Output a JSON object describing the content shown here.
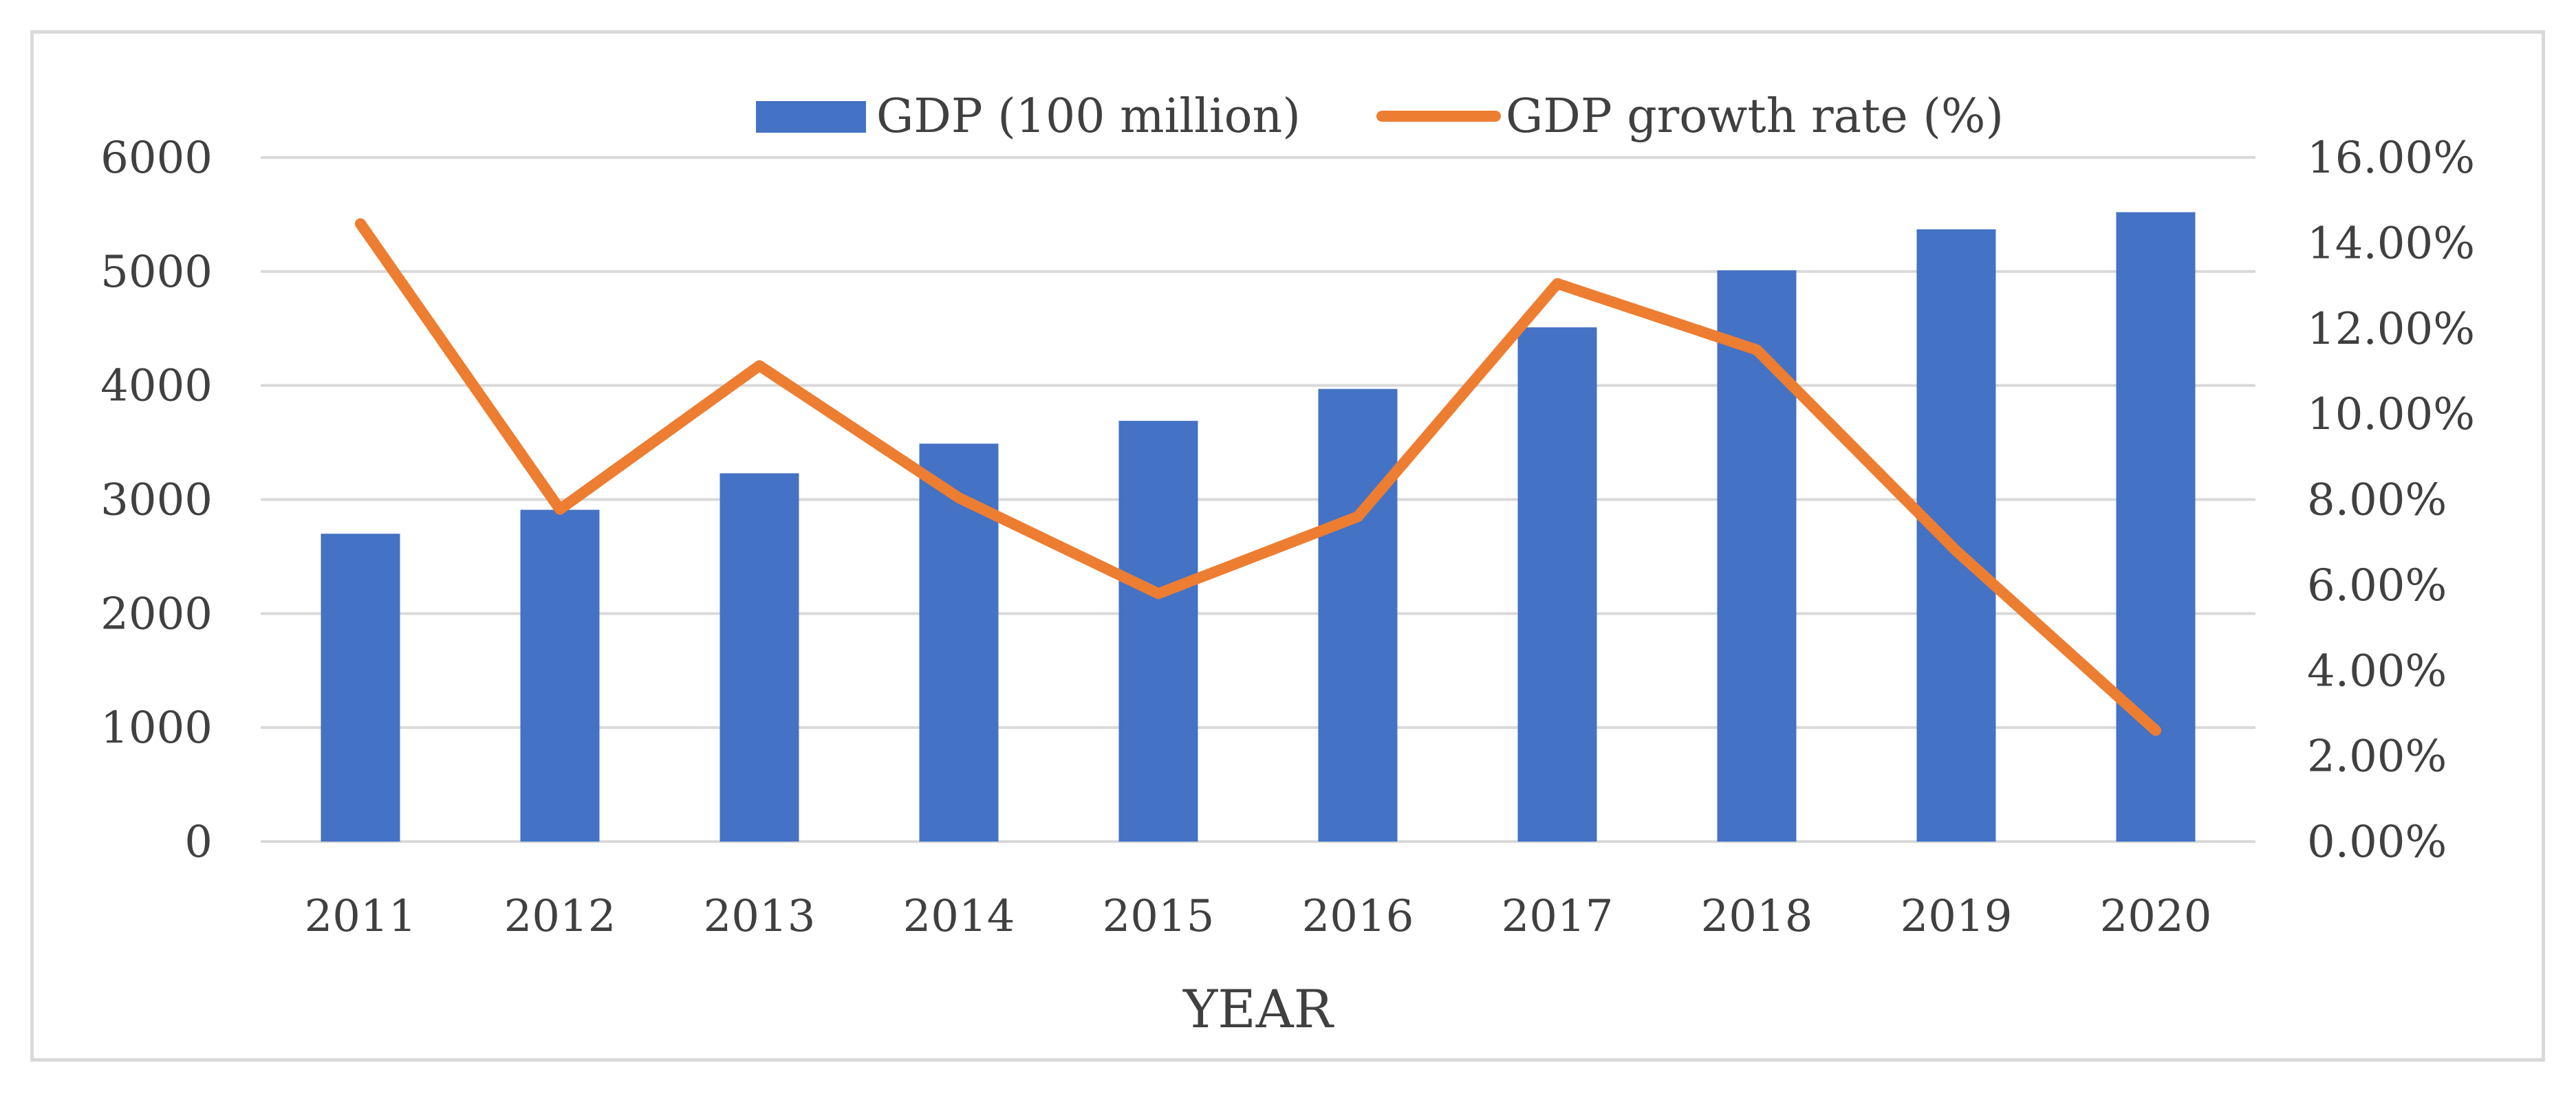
{
  "chart_data": {
    "type": "bar",
    "categories": [
      "2011",
      "2012",
      "2013",
      "2014",
      "2015",
      "2016",
      "2017",
      "2018",
      "2019",
      "2020"
    ],
    "series": [
      {
        "name": "GDP (100 million)",
        "type": "bar",
        "axis": "left",
        "color": "#4472c4",
        "values": [
          2700,
          2910,
          3230,
          3490,
          3690,
          3970,
          4510,
          5010,
          5370,
          5520
        ]
      },
      {
        "name": "GDP growth rate (%)",
        "type": "line",
        "axis": "right",
        "color": "#ed7d31",
        "values": [
          0.1445,
          0.0777,
          0.1113,
          0.0804,
          0.058,
          0.076,
          0.1305,
          0.115,
          0.068,
          0.026
        ]
      }
    ],
    "xlabel": "YEAR",
    "ylabel": "",
    "ylim": [
      0,
      6000
    ],
    "y_ticks": [
      "0",
      "1000",
      "2000",
      "3000",
      "4000",
      "5000",
      "6000"
    ],
    "y2lim": [
      0,
      0.16
    ],
    "y2_ticks": [
      "0.00%",
      "2.00%",
      "4.00%",
      "6.00%",
      "8.00%",
      "10.00%",
      "12.00%",
      "14.00%",
      "16.00%"
    ],
    "grid": true,
    "legend_position": "top-center"
  }
}
